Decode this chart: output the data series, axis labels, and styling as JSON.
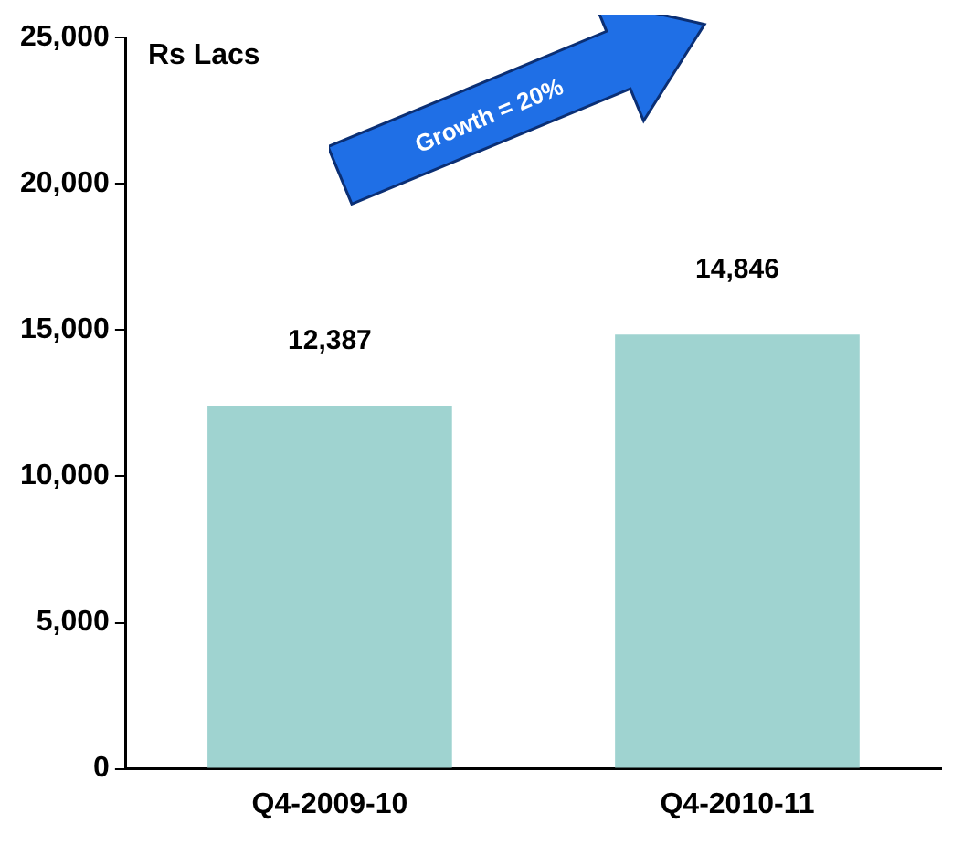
{
  "chart_data": {
    "type": "bar",
    "ylabel": "Rs Lacs",
    "categories": [
      "Q4-2009-10",
      "Q4-2010-11"
    ],
    "values": [
      12387,
      14846
    ],
    "color": "#9fd3d0",
    "ylim": [
      0,
      25000
    ],
    "yticks": [
      {
        "value": 0,
        "label": "0"
      },
      {
        "value": 5000,
        "label": "5,000"
      },
      {
        "value": 10000,
        "label": "10,000"
      },
      {
        "value": 15000,
        "label": "15,000"
      },
      {
        "value": 20000,
        "label": "20,000"
      },
      {
        "value": 25000,
        "label": "25,000"
      }
    ],
    "value_labels": [
      "12,387",
      "14,846"
    ],
    "grid": false,
    "legend": false,
    "annotations": [
      "Growth = 20%"
    ]
  }
}
